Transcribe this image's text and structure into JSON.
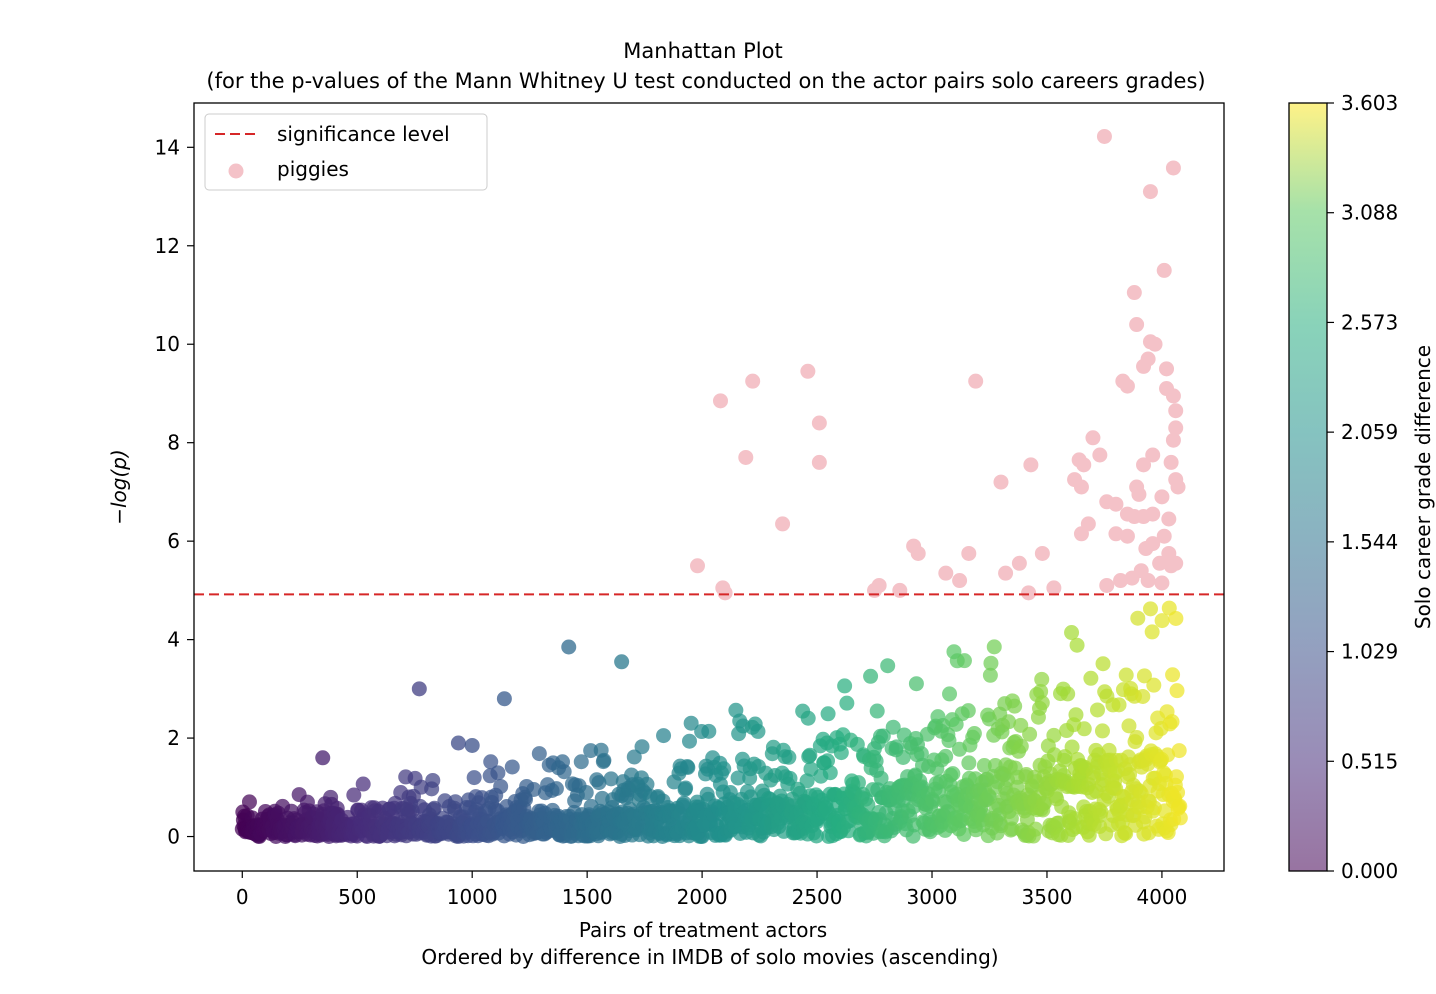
{
  "chart_data": {
    "type": "scatter",
    "title": "Manhattan Plot",
    "subtitle": "(for the p-values of the Mann Whitney U test conducted on the actor pairs solo careers grades)",
    "xlabel": "Pairs of treatment actors",
    "xlabel_sub": "Ordered by difference in IMDB of solo movies (ascending)",
    "ylabel": "−log(p)",
    "xlim": [
      -210,
      4270
    ],
    "ylim": [
      -0.7,
      14.9
    ],
    "xticks": [
      0,
      500,
      1000,
      1500,
      2000,
      2500,
      3000,
      3500,
      4000
    ],
    "yticks": [
      0,
      2,
      4,
      6,
      8,
      10,
      12,
      14
    ],
    "grid": false,
    "significance_level": 4.92,
    "legend": {
      "placement": "top-left",
      "entries": [
        {
          "label": "significance level",
          "color": "#d62728",
          "style": "dashed-line"
        },
        {
          "label": "piggies",
          "color": "#f4c2c8",
          "style": "marker"
        }
      ]
    },
    "colorbar": {
      "label": "Solo career grade difference",
      "cmap": "viridis",
      "range": [
        0.0,
        3.603
      ],
      "ticks": [
        "0.000",
        "0.515",
        "1.029",
        "1.544",
        "2.059",
        "2.573",
        "3.088",
        "3.603"
      ]
    },
    "series": [
      {
        "name": "piggies",
        "color": "#f4c2c8",
        "points": [
          [
            3750,
            14.22
          ],
          [
            4050,
            13.58
          ],
          [
            3950,
            13.1
          ],
          [
            4010,
            11.5
          ],
          [
            3880,
            11.05
          ],
          [
            3890,
            10.4
          ],
          [
            3950,
            10.05
          ],
          [
            3970,
            10.0
          ],
          [
            3940,
            9.7
          ],
          [
            3920,
            9.55
          ],
          [
            4020,
            9.5
          ],
          [
            3830,
            9.25
          ],
          [
            3850,
            9.15
          ],
          [
            4020,
            9.1
          ],
          [
            4050,
            8.95
          ],
          [
            4060,
            8.65
          ],
          [
            4060,
            8.3
          ],
          [
            4050,
            8.05
          ],
          [
            2460,
            9.45
          ],
          [
            2220,
            9.25
          ],
          [
            3190,
            9.25
          ],
          [
            2080,
            8.85
          ],
          [
            2510,
            8.4
          ],
          [
            2190,
            7.7
          ],
          [
            2510,
            7.6
          ],
          [
            3700,
            8.1
          ],
          [
            3730,
            7.75
          ],
          [
            3640,
            7.65
          ],
          [
            3660,
            7.55
          ],
          [
            3430,
            7.55
          ],
          [
            3960,
            7.75
          ],
          [
            3920,
            7.55
          ],
          [
            4040,
            7.6
          ],
          [
            4070,
            7.1
          ],
          [
            4060,
            7.25
          ],
          [
            3300,
            7.2
          ],
          [
            3620,
            7.25
          ],
          [
            3650,
            7.1
          ],
          [
            3760,
            6.8
          ],
          [
            3800,
            6.75
          ],
          [
            3890,
            7.1
          ],
          [
            3900,
            6.95
          ],
          [
            3850,
            6.55
          ],
          [
            3880,
            6.5
          ],
          [
            3920,
            6.5
          ],
          [
            3960,
            6.55
          ],
          [
            4000,
            6.9
          ],
          [
            4030,
            6.45
          ],
          [
            2350,
            6.35
          ],
          [
            3680,
            6.35
          ],
          [
            3650,
            6.15
          ],
          [
            3800,
            6.15
          ],
          [
            3850,
            6.1
          ],
          [
            3930,
            5.85
          ],
          [
            3960,
            5.95
          ],
          [
            4010,
            6.1
          ],
          [
            4030,
            5.75
          ],
          [
            4060,
            5.55
          ],
          [
            2920,
            5.9
          ],
          [
            2940,
            5.75
          ],
          [
            3160,
            5.75
          ],
          [
            3480,
            5.75
          ],
          [
            1980,
            5.5
          ],
          [
            3380,
            5.55
          ],
          [
            3060,
            5.35
          ],
          [
            3120,
            5.2
          ],
          [
            3320,
            5.35
          ],
          [
            3910,
            5.4
          ],
          [
            3990,
            5.55
          ],
          [
            4040,
            5.5
          ],
          [
            3870,
            5.25
          ],
          [
            3940,
            5.2
          ],
          [
            4000,
            5.15
          ],
          [
            2770,
            5.1
          ],
          [
            2090,
            5.05
          ],
          [
            2100,
            4.95
          ],
          [
            3530,
            5.05
          ],
          [
            3760,
            5.1
          ],
          [
            3820,
            5.2
          ],
          [
            2860,
            5.0
          ],
          [
            3420,
            4.95
          ],
          [
            2750,
            5.0
          ]
        ]
      }
    ],
    "background_points": "~4000 pairs sorted by x, colored by solo career grade difference (viridis); -log(p) rises from 0 to ~4.9 below the significance line"
  }
}
